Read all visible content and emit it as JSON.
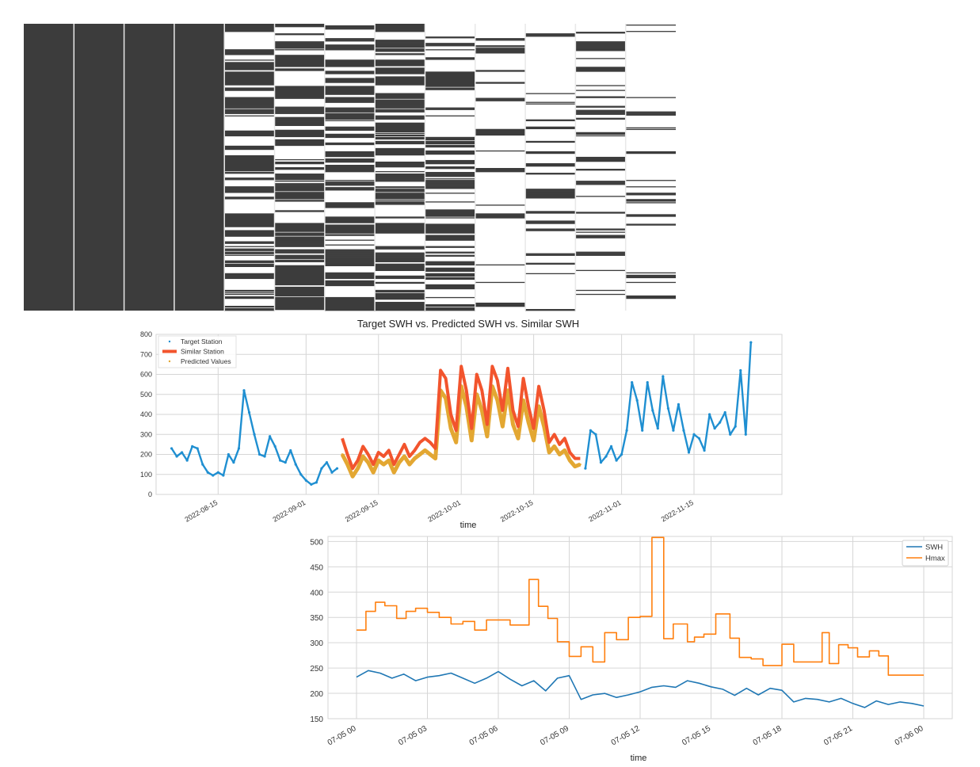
{
  "colors": {
    "missing_dark": "#3c3c3c",
    "grid": "#d6d6d6",
    "axes_frame": "#d6d6d6",
    "target_station": "#1f8fd1",
    "similar_station": "#f2542d",
    "predicted_values": "#e3a732",
    "swh": "#1f77b4",
    "hmax": "#ff7f0e"
  },
  "chart_data": [
    {
      "type": "heatmap",
      "subtype": "missing-value matrix",
      "title": "",
      "column_count": 13,
      "row_count": 360,
      "column_missing_fraction": [
        0,
        0,
        0,
        0,
        0.5,
        0.45,
        0.45,
        0.45,
        0.6,
        0.88,
        0.88,
        0.82,
        0.82
      ],
      "grid": false
    },
    {
      "type": "line",
      "title": "Target SWH vs. Predicted SWH vs. Similar SWH",
      "xlabel": "time",
      "ylabel": "",
      "x_range": [
        "2022-08-03",
        "2022-12-02"
      ],
      "ylim": [
        0,
        800
      ],
      "yticks": [
        0,
        100,
        200,
        300,
        400,
        500,
        600,
        700,
        800
      ],
      "xticks": [
        "2022-08-15",
        "2022-09-01",
        "2022-09-15",
        "2022-10-01",
        "2022-10-15",
        "2022-11-01",
        "2022-11-15"
      ],
      "grid": true,
      "legend_position": "top-left",
      "series": [
        {
          "name": "Target Station",
          "style": "markers",
          "segments": [
            {
              "x": [
                "2022-08-06",
                "2022-08-07",
                "2022-08-08",
                "2022-08-09",
                "2022-08-10",
                "2022-08-11",
                "2022-08-12",
                "2022-08-13",
                "2022-08-14",
                "2022-08-15",
                "2022-08-16",
                "2022-08-17",
                "2022-08-18",
                "2022-08-19",
                "2022-08-20",
                "2022-08-21",
                "2022-08-22",
                "2022-08-23",
                "2022-08-24",
                "2022-08-25",
                "2022-08-26",
                "2022-08-27",
                "2022-08-28",
                "2022-08-29",
                "2022-08-30",
                "2022-08-31",
                "2022-09-01",
                "2022-09-02",
                "2022-09-03",
                "2022-09-04",
                "2022-09-05",
                "2022-09-06",
                "2022-09-07"
              ],
              "y": [
                230,
                190,
                210,
                170,
                240,
                230,
                150,
                110,
                95,
                110,
                95,
                200,
                160,
                230,
                520,
                410,
                300,
                200,
                190,
                290,
                240,
                170,
                160,
                220,
                150,
                100,
                70,
                50,
                60,
                130,
                160,
                110,
                130
              ]
            },
            {
              "x": [
                "2022-10-25",
                "2022-10-26",
                "2022-10-27",
                "2022-10-28",
                "2022-10-29",
                "2022-10-30",
                "2022-10-31",
                "2022-11-01",
                "2022-11-02",
                "2022-11-03",
                "2022-11-04",
                "2022-11-05",
                "2022-11-06",
                "2022-11-07",
                "2022-11-08",
                "2022-11-09",
                "2022-11-10",
                "2022-11-11",
                "2022-11-12",
                "2022-11-13",
                "2022-11-14",
                "2022-11-15",
                "2022-11-16",
                "2022-11-17",
                "2022-11-18",
                "2022-11-19",
                "2022-11-20",
                "2022-11-21",
                "2022-11-22",
                "2022-11-23",
                "2022-11-24",
                "2022-11-25",
                "2022-11-26"
              ],
              "y": [
                130,
                320,
                300,
                160,
                190,
                240,
                170,
                200,
                320,
                560,
                470,
                320,
                560,
                420,
                330,
                590,
                430,
                320,
                450,
                320,
                210,
                300,
                280,
                220,
                400,
                330,
                360,
                410,
                300,
                340,
                620,
                300,
                760
              ]
            }
          ]
        },
        {
          "name": "Similar Station",
          "style": "thick-line",
          "x": [
            "2022-09-08",
            "2022-09-09",
            "2022-09-10",
            "2022-09-11",
            "2022-09-12",
            "2022-09-13",
            "2022-09-14",
            "2022-09-15",
            "2022-09-16",
            "2022-09-17",
            "2022-09-18",
            "2022-09-19",
            "2022-09-20",
            "2022-09-21",
            "2022-09-22",
            "2022-09-23",
            "2022-09-24",
            "2022-09-25",
            "2022-09-26",
            "2022-09-27",
            "2022-09-28",
            "2022-09-29",
            "2022-09-30",
            "2022-10-01",
            "2022-10-02",
            "2022-10-03",
            "2022-10-04",
            "2022-10-05",
            "2022-10-06",
            "2022-10-07",
            "2022-10-08",
            "2022-10-09",
            "2022-10-10",
            "2022-10-11",
            "2022-10-12",
            "2022-10-13",
            "2022-10-14",
            "2022-10-15",
            "2022-10-16",
            "2022-10-17",
            "2022-10-18",
            "2022-10-19",
            "2022-10-20",
            "2022-10-21",
            "2022-10-22",
            "2022-10-23",
            "2022-10-24"
          ],
          "y": [
            280,
            200,
            130,
            170,
            240,
            200,
            150,
            210,
            190,
            220,
            150,
            200,
            250,
            190,
            220,
            260,
            280,
            260,
            230,
            620,
            580,
            400,
            320,
            640,
            520,
            330,
            600,
            520,
            350,
            640,
            570,
            420,
            630,
            420,
            340,
            580,
            440,
            330,
            540,
            420,
            260,
            300,
            250,
            280,
            210,
            180,
            180
          ]
        },
        {
          "name": "Predicted Values",
          "style": "markers",
          "x": [
            "2022-09-08",
            "2022-09-09",
            "2022-09-10",
            "2022-09-11",
            "2022-09-12",
            "2022-09-13",
            "2022-09-14",
            "2022-09-15",
            "2022-09-16",
            "2022-09-17",
            "2022-09-18",
            "2022-09-19",
            "2022-09-20",
            "2022-09-21",
            "2022-09-22",
            "2022-09-23",
            "2022-09-24",
            "2022-09-25",
            "2022-09-26",
            "2022-09-27",
            "2022-09-28",
            "2022-09-29",
            "2022-09-30",
            "2022-10-01",
            "2022-10-02",
            "2022-10-03",
            "2022-10-04",
            "2022-10-05",
            "2022-10-06",
            "2022-10-07",
            "2022-10-08",
            "2022-10-09",
            "2022-10-10",
            "2022-10-11",
            "2022-10-12",
            "2022-10-13",
            "2022-10-14",
            "2022-10-15",
            "2022-10-16",
            "2022-10-17",
            "2022-10-18",
            "2022-10-19",
            "2022-10-20",
            "2022-10-21",
            "2022-10-22",
            "2022-10-23",
            "2022-10-24"
          ],
          "y": [
            200,
            150,
            90,
            130,
            190,
            160,
            110,
            170,
            150,
            170,
            110,
            160,
            190,
            150,
            180,
            200,
            220,
            200,
            180,
            520,
            480,
            330,
            260,
            540,
            440,
            270,
            500,
            420,
            290,
            540,
            470,
            340,
            520,
            350,
            280,
            470,
            360,
            270,
            440,
            340,
            210,
            240,
            200,
            220,
            170,
            140,
            150
          ]
        }
      ]
    },
    {
      "type": "line",
      "title": "",
      "xlabel": "time",
      "ylabel": "",
      "x_range": [
        "07-05 00",
        "07-06 00"
      ],
      "x_hours_span": 24,
      "ylim": [
        150,
        510
      ],
      "yticks": [
        150,
        200,
        250,
        300,
        350,
        400,
        450,
        500
      ],
      "xticks": [
        "07-05 00",
        "07-05 03",
        "07-05 06",
        "07-05 09",
        "07-05 12",
        "07-05 15",
        "07-05 18",
        "07-05 21",
        "07-06 00"
      ],
      "grid": true,
      "legend_position": "top-right",
      "series": [
        {
          "name": "SWH",
          "x_hours": [
            0,
            0.5,
            1,
            1.5,
            2,
            2.5,
            3,
            3.5,
            4,
            4.5,
            5,
            5.5,
            6,
            6.5,
            7,
            7.5,
            8,
            8.5,
            9,
            9.5,
            10,
            10.5,
            11,
            11.5,
            12,
            12.5,
            13,
            13.5,
            14,
            14.5,
            15,
            15.5,
            16,
            16.5,
            17,
            17.5,
            18,
            18.5,
            19,
            19.5,
            20,
            20.5,
            21,
            21.5,
            22,
            22.5,
            23,
            23.5,
            24
          ],
          "y": [
            232,
            245,
            240,
            230,
            238,
            225,
            232,
            235,
            240,
            230,
            220,
            230,
            243,
            228,
            215,
            225,
            205,
            230,
            235,
            188,
            197,
            200,
            192,
            197,
            203,
            212,
            215,
            212,
            225,
            220,
            213,
            208,
            196,
            210,
            197,
            210,
            206,
            183,
            190,
            188,
            183,
            190,
            180,
            172,
            185,
            178,
            183,
            180,
            175
          ]
        },
        {
          "name": "Hmax",
          "x_hours": [
            0,
            0.4,
            0.4,
            0.8,
            0.8,
            1.2,
            1.2,
            1.7,
            1.7,
            2.1,
            2.1,
            2.5,
            2.5,
            3.0,
            3.0,
            3.5,
            3.5,
            4.0,
            4.0,
            4.5,
            4.5,
            5.0,
            5.0,
            5.5,
            5.5,
            6.5,
            6.5,
            7.3,
            7.3,
            7.7,
            7.7,
            8.1,
            8.1,
            8.5,
            8.5,
            9.0,
            9.0,
            9.5,
            9.5,
            10.0,
            10.0,
            10.5,
            10.5,
            11.0,
            11.0,
            11.5,
            11.5,
            12.0,
            12.0,
            12.5,
            12.5,
            13.0,
            13.0,
            13.4,
            13.4,
            14.0,
            14.0,
            14.3,
            14.3,
            14.7,
            14.7,
            15.2,
            15.2,
            15.8,
            15.8,
            16.2,
            16.2,
            16.7,
            16.7,
            17.2,
            17.2,
            18.0,
            18.0,
            18.5,
            18.5,
            18.9,
            18.9,
            19.7,
            19.7,
            20.0,
            20.0,
            20.4,
            20.4,
            20.8,
            20.8,
            21.2,
            21.2,
            21.7,
            21.7,
            22.1,
            22.1,
            22.5,
            22.5,
            22.9,
            22.9,
            23.2,
            23.2,
            24.0
          ],
          "y": [
            325,
            325,
            362,
            362,
            380,
            380,
            373,
            373,
            348,
            348,
            362,
            362,
            368,
            368,
            360,
            360,
            350,
            350,
            337,
            337,
            342,
            342,
            325,
            325,
            345,
            345,
            335,
            335,
            425,
            425,
            372,
            372,
            348,
            348,
            302,
            302,
            273,
            273,
            292,
            292,
            262,
            262,
            320,
            320,
            306,
            306,
            350,
            350,
            352,
            352,
            508,
            508,
            308,
            308,
            337,
            337,
            302,
            302,
            311,
            311,
            317,
            317,
            357,
            357,
            309,
            309,
            271,
            271,
            268,
            268,
            255,
            255,
            297,
            297,
            262,
            262,
            262,
            262,
            320,
            320,
            259,
            259,
            296,
            296,
            290,
            290,
            272,
            272,
            284,
            284,
            274,
            274,
            236,
            236,
            236,
            236,
            236,
            236
          ]
        }
      ]
    }
  ]
}
